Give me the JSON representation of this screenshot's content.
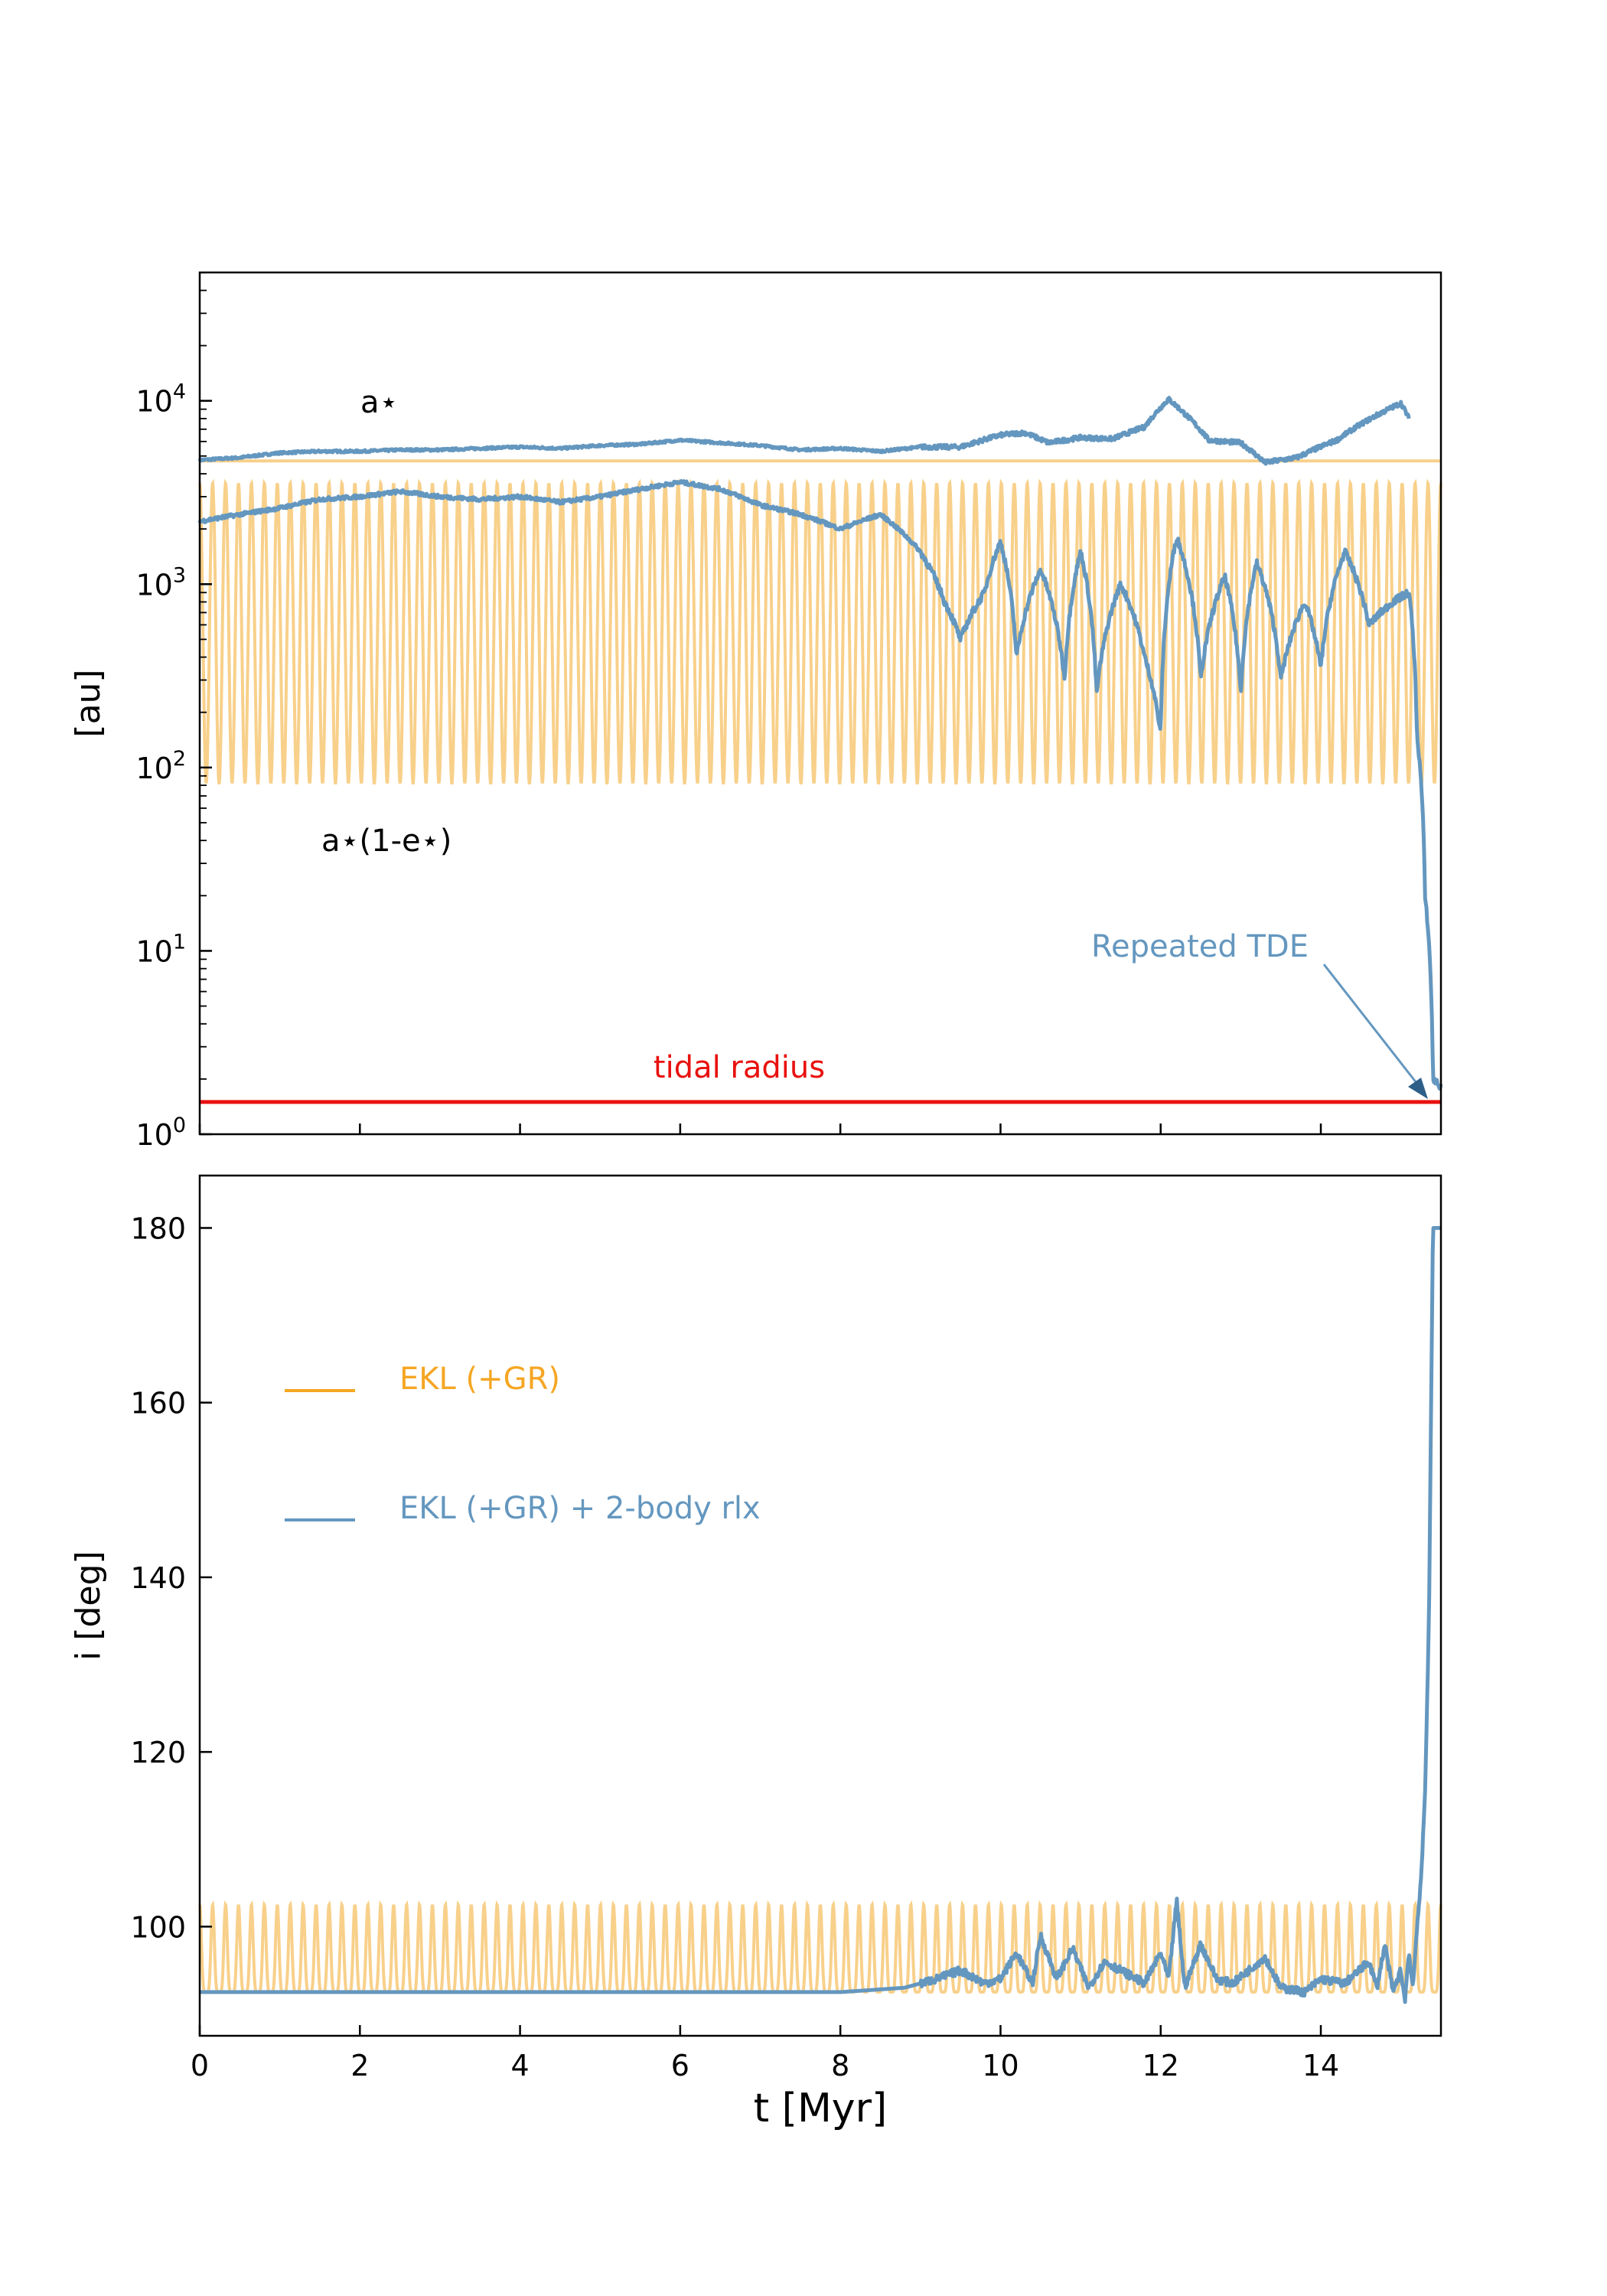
{
  "chart_data": [
    {
      "type": "line",
      "panel": "top",
      "yscale": "log",
      "xlim": [
        0,
        15.5
      ],
      "ylim_exponent": [
        0,
        4.7
      ],
      "ylabel": "[au]",
      "yticks": [
        {
          "value": 1,
          "base": "10",
          "exp": "0"
        },
        {
          "value": 10,
          "base": "10",
          "exp": "1"
        },
        {
          "value": 100,
          "base": "10",
          "exp": "2"
        },
        {
          "value": 1000,
          "base": "10",
          "exp": "3"
        },
        {
          "value": 10000,
          "base": "10",
          "exp": "4"
        }
      ],
      "annotations": {
        "a_star": "a⋆",
        "pericenter": "a⋆(1-e⋆)",
        "tidal_radius": "tidal radius",
        "repeated_tde": "Repeated TDE"
      },
      "series": [
        {
          "name": "EKL (+GR) a",
          "color": "#f8d08a",
          "style": "constant",
          "value": 4700
        },
        {
          "name": "EKL (+GR) pericenter",
          "color": "#f8d08a",
          "style": "oscillation",
          "min": 82,
          "max": 3550,
          "cycles": 96
        },
        {
          "name": "EKL (+GR) + 2-body rlx a",
          "color": "#6497bf",
          "x": [
            0,
            0.5,
            1,
            1.5,
            2,
            2.5,
            3,
            3.5,
            4,
            4.5,
            5,
            5.5,
            6,
            6.5,
            7,
            7.5,
            8,
            8.5,
            9,
            9.5,
            10,
            10.3,
            10.6,
            11,
            11.4,
            11.8,
            12.1,
            12.3,
            12.6,
            13,
            13.3,
            13.7,
            14.2,
            14.6,
            15,
            15.1
          ],
          "y": [
            4750,
            4900,
            5200,
            5300,
            5300,
            5400,
            5400,
            5500,
            5600,
            5500,
            5700,
            5800,
            6100,
            5900,
            5700,
            5400,
            5500,
            5300,
            5600,
            5600,
            6500,
            6700,
            5900,
            6300,
            6200,
            7200,
            10200,
            8500,
            6100,
            5900,
            4600,
            4900,
            6100,
            7900,
            9700,
            8000
          ]
        },
        {
          "name": "EKL (+GR) + 2-body rlx pericenter",
          "color": "#6497bf",
          "x": [
            0,
            0.5,
            1,
            1.5,
            2,
            2.5,
            3,
            3.5,
            4,
            4.5,
            5,
            5.5,
            6,
            6.5,
            7,
            7.5,
            8,
            8.5,
            9,
            9.3,
            9.5,
            9.8,
            10,
            10.2,
            10.5,
            10.8,
            11,
            11.2,
            11.5,
            11.8,
            12,
            12.2,
            12.5,
            12.8,
            13,
            13.2,
            13.5,
            13.8,
            14,
            14.3,
            14.6,
            14.9,
            15.1,
            15.2,
            15.3,
            15.4,
            15.5
          ],
          "y": [
            2200,
            2400,
            2600,
            2900,
            3000,
            3200,
            3000,
            2900,
            3000,
            2800,
            3000,
            3300,
            3600,
            3300,
            2700,
            2400,
            2000,
            2400,
            1500,
            800,
            500,
            900,
            1700,
            400,
            1200,
            300,
            1500,
            250,
            1000,
            400,
            150,
            1800,
            300,
            1100,
            250,
            1300,
            300,
            800,
            350,
            1500,
            600,
            800,
            900,
            150,
            20,
            2,
            1.8
          ]
        }
      ],
      "tidal_radius_value": 1.5
    },
    {
      "type": "line",
      "panel": "bottom",
      "xlim": [
        0,
        15.5
      ],
      "ylim": [
        87.5,
        186
      ],
      "xlabel": "t [Myr]",
      "ylabel": "i [deg]",
      "xticks": [
        0,
        2,
        4,
        6,
        8,
        10,
        12,
        14
      ],
      "yticks": [
        100,
        120,
        140,
        160,
        180
      ],
      "legend": [
        "EKL (+GR)",
        "EKL (+GR) + 2-body rlx"
      ],
      "series": [
        {
          "name": "EKL (+GR)",
          "color": "#f8d08a",
          "style": "oscillation",
          "min": 92.5,
          "max": 102.5,
          "cycles": 96
        },
        {
          "name": "EKL (+GR) + 2-body rlx",
          "color": "#6497bf",
          "x": [
            0,
            2,
            4,
            6,
            8,
            8.8,
            9.2,
            9.5,
            9.8,
            10,
            10.2,
            10.4,
            10.5,
            10.7,
            10.9,
            11.1,
            11.3,
            11.5,
            11.8,
            12,
            12.1,
            12.2,
            12.3,
            12.5,
            12.7,
            12.9,
            13.1,
            13.3,
            13.5,
            13.8,
            14,
            14.3,
            14.6,
            14.7,
            14.8,
            14.9,
            15,
            15.05,
            15.1,
            15.15,
            15.2,
            15.25,
            15.3,
            15.35,
            15.4,
            15.5
          ],
          "y": [
            92.5,
            92.5,
            92.5,
            92.5,
            92.5,
            93,
            94,
            95,
            93.5,
            94,
            97,
            93.5,
            99,
            94,
            97.5,
            93,
            96,
            95,
            93.5,
            97,
            94,
            103,
            93,
            98,
            94,
            93.5,
            95,
            96.5,
            93,
            92.5,
            94,
            93.5,
            96,
            93,
            98,
            92.5,
            95,
            91.5,
            97,
            93,
            100,
            105,
            115,
            135,
            180,
            180
          ]
        }
      ]
    }
  ]
}
